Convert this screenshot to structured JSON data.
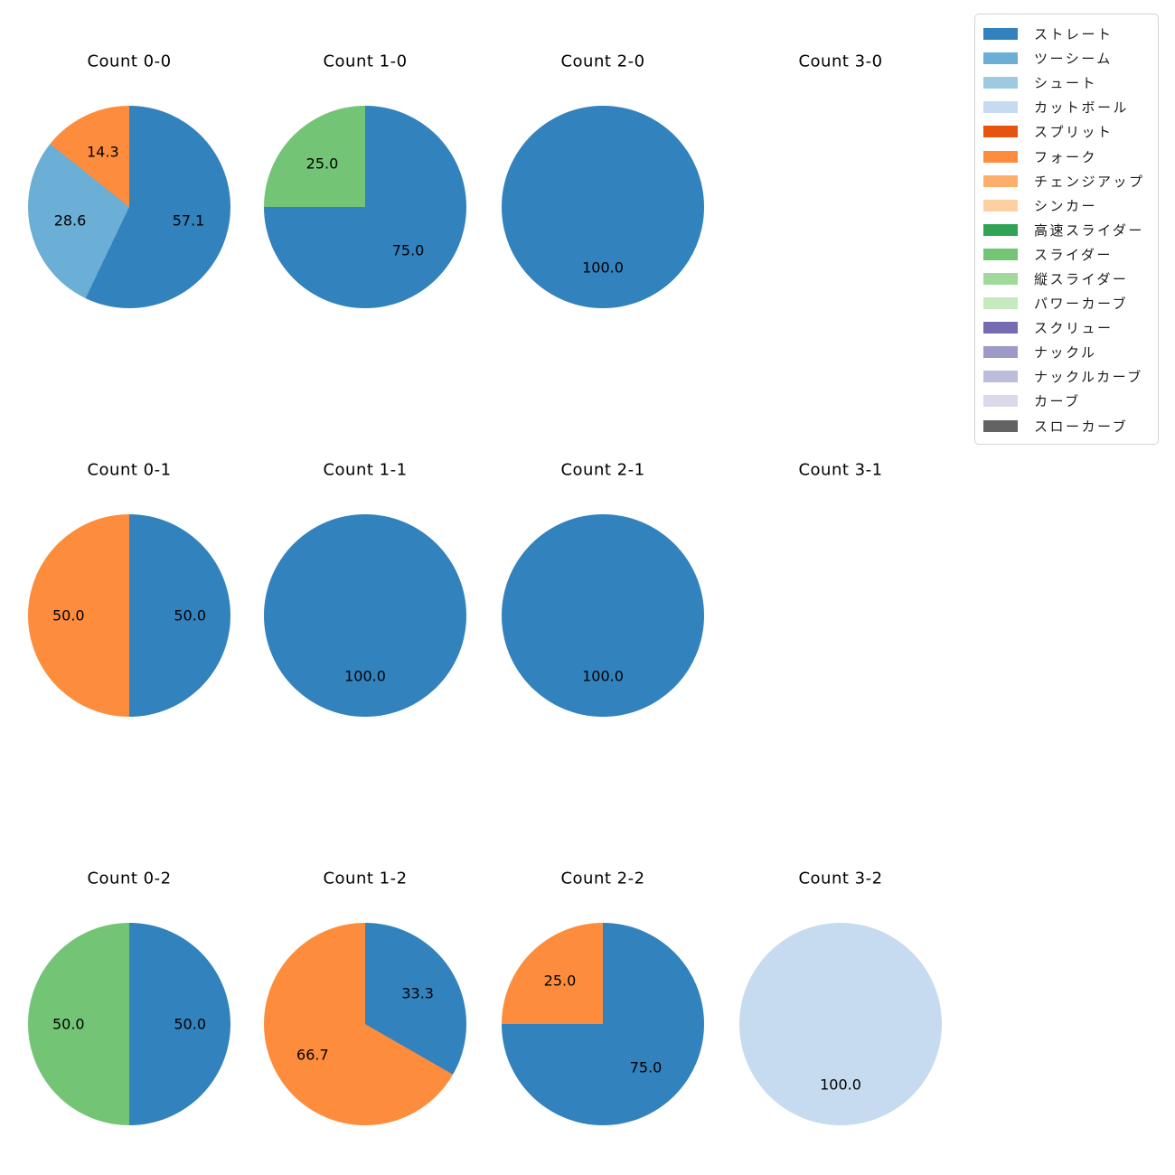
{
  "figure": {
    "background": "#ffffff",
    "text_color": "#000000"
  },
  "chart_data": {
    "type": "pie",
    "title": "",
    "grid": {
      "rows": 3,
      "cols": 4
    },
    "label_format": "percent_one_decimal",
    "start_angle_deg": 90,
    "direction": "clockwise",
    "legend": {
      "position": "upper right",
      "entries": [
        {
          "label": "ストレート",
          "color": "#3182bd"
        },
        {
          "label": "ツーシーム",
          "color": "#6baed6"
        },
        {
          "label": "シュート",
          "color": "#9ecae1"
        },
        {
          "label": "カットボール",
          "color": "#c6dbef"
        },
        {
          "label": "スプリット",
          "color": "#e6550d"
        },
        {
          "label": "フォーク",
          "color": "#fd8d3c"
        },
        {
          "label": "チェンジアップ",
          "color": "#fdae6b"
        },
        {
          "label": "シンカー",
          "color": "#fdd0a2"
        },
        {
          "label": "高速スライダー",
          "color": "#31a354"
        },
        {
          "label": "スライダー",
          "color": "#74c476"
        },
        {
          "label": "縦スライダー",
          "color": "#a1d99b"
        },
        {
          "label": "パワーカーブ",
          "color": "#c7e9c0"
        },
        {
          "label": "スクリュー",
          "color": "#756bb1"
        },
        {
          "label": "ナックル",
          "color": "#9e9ac8"
        },
        {
          "label": "ナックルカーブ",
          "color": "#bcbddc"
        },
        {
          "label": "カーブ",
          "color": "#dadaeb"
        },
        {
          "label": "スローカーブ",
          "color": "#636363"
        }
      ]
    },
    "pies": [
      {
        "title": "Count 0-0",
        "row": 0,
        "col": 0,
        "slices": [
          {
            "pitch": "ストレート",
            "pct": 57.1,
            "label": "57.1"
          },
          {
            "pitch": "ツーシーム",
            "pct": 28.6,
            "label": "28.6"
          },
          {
            "pitch": "フォーク",
            "pct": 14.3,
            "label": "14.3"
          }
        ]
      },
      {
        "title": "Count 1-0",
        "row": 0,
        "col": 1,
        "slices": [
          {
            "pitch": "ストレート",
            "pct": 75.0,
            "label": "75.0"
          },
          {
            "pitch": "スライダー",
            "pct": 25.0,
            "label": "25.0"
          }
        ]
      },
      {
        "title": "Count 2-0",
        "row": 0,
        "col": 2,
        "slices": [
          {
            "pitch": "ストレート",
            "pct": 100.0,
            "label": "100.0"
          }
        ]
      },
      {
        "title": "Count 3-0",
        "row": 0,
        "col": 3,
        "slices": []
      },
      {
        "title": "Count 0-1",
        "row": 1,
        "col": 0,
        "slices": [
          {
            "pitch": "ストレート",
            "pct": 50.0,
            "label": "50.0"
          },
          {
            "pitch": "フォーク",
            "pct": 50.0,
            "label": "50.0"
          }
        ]
      },
      {
        "title": "Count 1-1",
        "row": 1,
        "col": 1,
        "slices": [
          {
            "pitch": "ストレート",
            "pct": 100.0,
            "label": "100.0"
          }
        ]
      },
      {
        "title": "Count 2-1",
        "row": 1,
        "col": 2,
        "slices": [
          {
            "pitch": "ストレート",
            "pct": 100.0,
            "label": "100.0"
          }
        ]
      },
      {
        "title": "Count 3-1",
        "row": 1,
        "col": 3,
        "slices": []
      },
      {
        "title": "Count 0-2",
        "row": 2,
        "col": 0,
        "slices": [
          {
            "pitch": "ストレート",
            "pct": 50.0,
            "label": "50.0"
          },
          {
            "pitch": "スライダー",
            "pct": 50.0,
            "label": "50.0"
          }
        ]
      },
      {
        "title": "Count 1-2",
        "row": 2,
        "col": 1,
        "slices": [
          {
            "pitch": "ストレート",
            "pct": 33.3,
            "label": "33.3"
          },
          {
            "pitch": "フォーク",
            "pct": 66.7,
            "label": "66.7"
          }
        ]
      },
      {
        "title": "Count 2-2",
        "row": 2,
        "col": 2,
        "slices": [
          {
            "pitch": "ストレート",
            "pct": 75.0,
            "label": "75.0"
          },
          {
            "pitch": "フォーク",
            "pct": 25.0,
            "label": "25.0"
          }
        ]
      },
      {
        "title": "Count 3-2",
        "row": 2,
        "col": 3,
        "slices": [
          {
            "pitch": "カットボール",
            "pct": 100.0,
            "label": "100.0"
          }
        ]
      }
    ]
  }
}
